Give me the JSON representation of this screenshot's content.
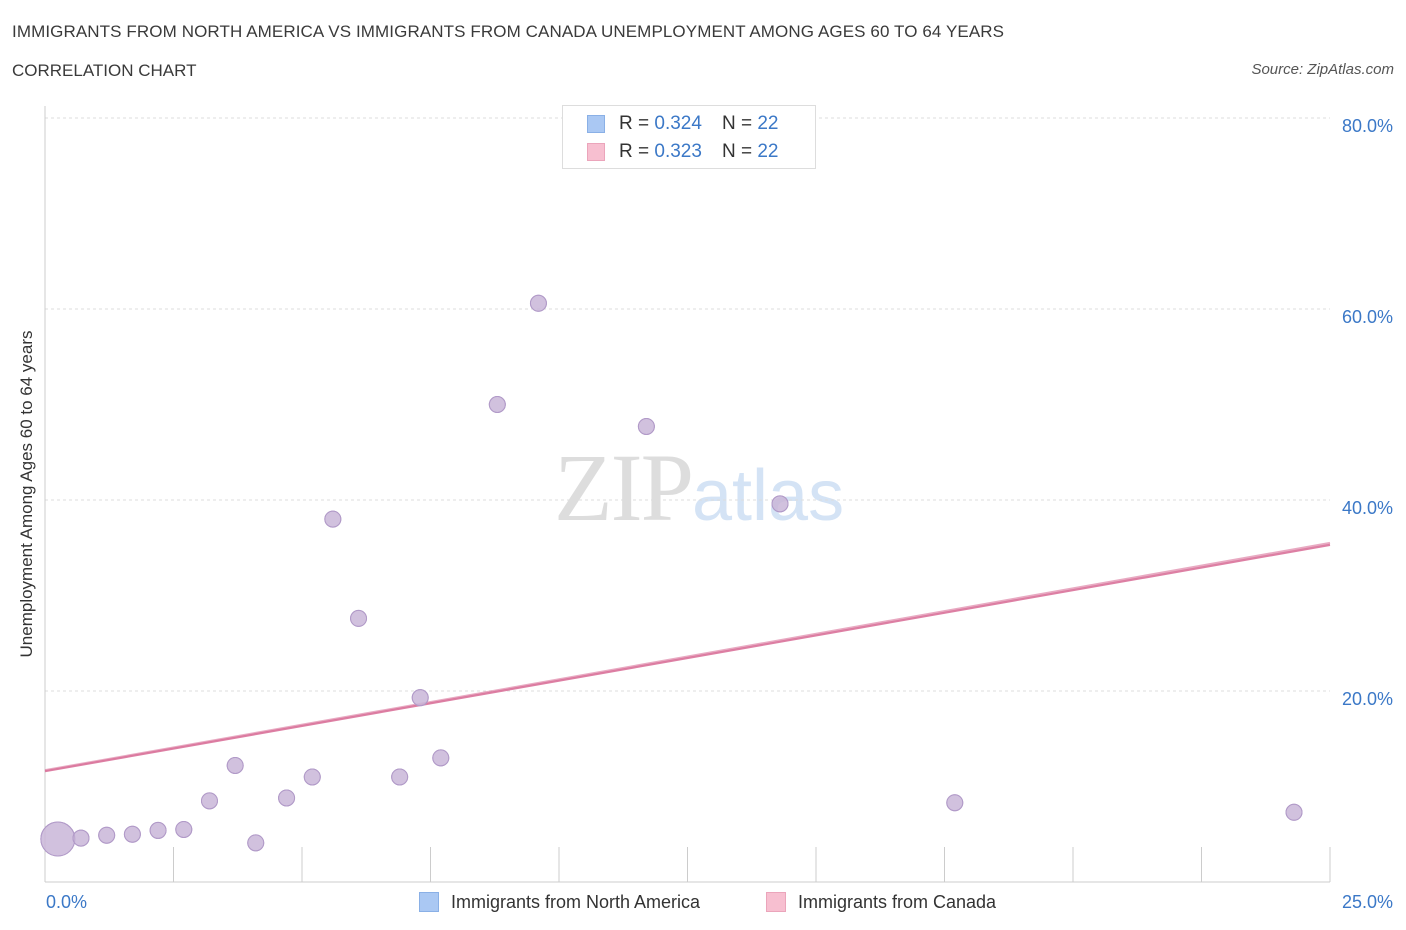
{
  "header": {
    "title": "IMMIGRANTS FROM NORTH AMERICA VS IMMIGRANTS FROM CANADA UNEMPLOYMENT AMONG AGES 60 TO 64 YEARS",
    "subtitle": "CORRELATION CHART",
    "source": "Source: ZipAtlas.com"
  },
  "watermark": {
    "zip": "ZIP",
    "atlas": "atlas"
  },
  "legend": {
    "rows": [
      {
        "r_label": "R = ",
        "r_value": "0.324",
        "n_label": "N = ",
        "n_value": "22",
        "color": "#aac8f3",
        "border": "#8ab0e6"
      },
      {
        "r_label": "R = ",
        "r_value": "0.323",
        "n_label": "N = ",
        "n_value": "22",
        "color": "#f7bfd0",
        "border": "#eba5bb"
      }
    ]
  },
  "bottom_legend": [
    {
      "label": "Immigrants from North America",
      "color": "#aac8f3",
      "border": "#8ab0e6"
    },
    {
      "label": "Immigrants from Canada",
      "color": "#f7bfd0",
      "border": "#eba5bb"
    }
  ],
  "colors": {
    "point_fill": "#c9b6d8",
    "point_stroke": "#b19ac8",
    "trend_line": "#d9729a",
    "tick_label": "#3b78c7",
    "grid": "#dddddd",
    "axis": "#cccccc"
  },
  "chart_data": {
    "type": "scatter",
    "title": "IMMIGRANTS FROM NORTH AMERICA VS IMMIGRANTS FROM CANADA UNEMPLOYMENT AMONG AGES 60 TO 64 YEARS",
    "xlabel": "",
    "ylabel": "Unemployment Among Ages 60 to 64 years",
    "xlim": [
      0,
      25
    ],
    "ylim": [
      0,
      80
    ],
    "x_tick_labels": [
      {
        "value": 0,
        "label": "0.0%"
      },
      {
        "value": 25,
        "label": "25.0%"
      }
    ],
    "y_tick_labels": [
      {
        "value": 20,
        "label": "20.0%"
      },
      {
        "value": 40,
        "label": "40.0%"
      },
      {
        "value": 60,
        "label": "60.0%"
      },
      {
        "value": 80,
        "label": "80.0%"
      }
    ],
    "x_minor_ticks": [
      2.5,
      5,
      7.5,
      10,
      12.5,
      15,
      17.5,
      20,
      22.5,
      25
    ],
    "gridlines": "horizontal",
    "series": [
      {
        "name": "Immigrants from North America",
        "points": [
          {
            "x": 0.25,
            "y": 4.5,
            "size": "large"
          },
          {
            "x": 0.7,
            "y": 4.6
          },
          {
            "x": 1.2,
            "y": 4.9
          },
          {
            "x": 1.7,
            "y": 5.0
          },
          {
            "x": 2.2,
            "y": 5.4
          },
          {
            "x": 2.7,
            "y": 5.5
          },
          {
            "x": 3.2,
            "y": 8.5
          },
          {
            "x": 3.7,
            "y": 12.2
          },
          {
            "x": 4.1,
            "y": 4.1
          },
          {
            "x": 4.7,
            "y": 8.8
          },
          {
            "x": 5.2,
            "y": 11.0
          },
          {
            "x": 5.6,
            "y": 38.0
          },
          {
            "x": 6.1,
            "y": 27.6
          },
          {
            "x": 6.9,
            "y": 11.0
          },
          {
            "x": 7.3,
            "y": 19.3
          },
          {
            "x": 7.7,
            "y": 13.0
          },
          {
            "x": 8.8,
            "y": 50.0
          },
          {
            "x": 9.6,
            "y": 60.6
          },
          {
            "x": 11.7,
            "y": 47.7
          },
          {
            "x": 14.3,
            "y": 39.6
          },
          {
            "x": 17.7,
            "y": 8.3
          },
          {
            "x": 24.3,
            "y": 7.3
          }
        ]
      },
      {
        "name": "Immigrants from Canada",
        "points": [
          {
            "x": 0.25,
            "y": 4.5,
            "size": "large"
          },
          {
            "x": 0.7,
            "y": 4.6
          },
          {
            "x": 1.2,
            "y": 4.9
          },
          {
            "x": 1.7,
            "y": 5.0
          },
          {
            "x": 2.2,
            "y": 5.4
          },
          {
            "x": 2.7,
            "y": 5.5
          },
          {
            "x": 3.2,
            "y": 8.5
          },
          {
            "x": 3.7,
            "y": 12.2
          },
          {
            "x": 4.1,
            "y": 4.1
          },
          {
            "x": 4.7,
            "y": 8.8
          },
          {
            "x": 5.2,
            "y": 11.0
          },
          {
            "x": 5.6,
            "y": 38.0
          },
          {
            "x": 6.1,
            "y": 27.6
          },
          {
            "x": 6.9,
            "y": 11.0
          },
          {
            "x": 7.3,
            "y": 19.3
          },
          {
            "x": 7.7,
            "y": 13.0
          },
          {
            "x": 8.8,
            "y": 50.0
          },
          {
            "x": 9.6,
            "y": 60.6
          },
          {
            "x": 11.7,
            "y": 47.7
          },
          {
            "x": 14.3,
            "y": 39.6
          },
          {
            "x": 17.7,
            "y": 8.3
          },
          {
            "x": 24.3,
            "y": 7.3
          }
        ]
      }
    ],
    "trend_lines": [
      {
        "name": "Immigrants from North America",
        "x0": 0,
        "y0": 11.7,
        "x1": 25,
        "y1": 35.5
      },
      {
        "name": "Immigrants from Canada",
        "x0": 0,
        "y0": 11.6,
        "x1": 25,
        "y1": 35.3
      }
    ]
  }
}
